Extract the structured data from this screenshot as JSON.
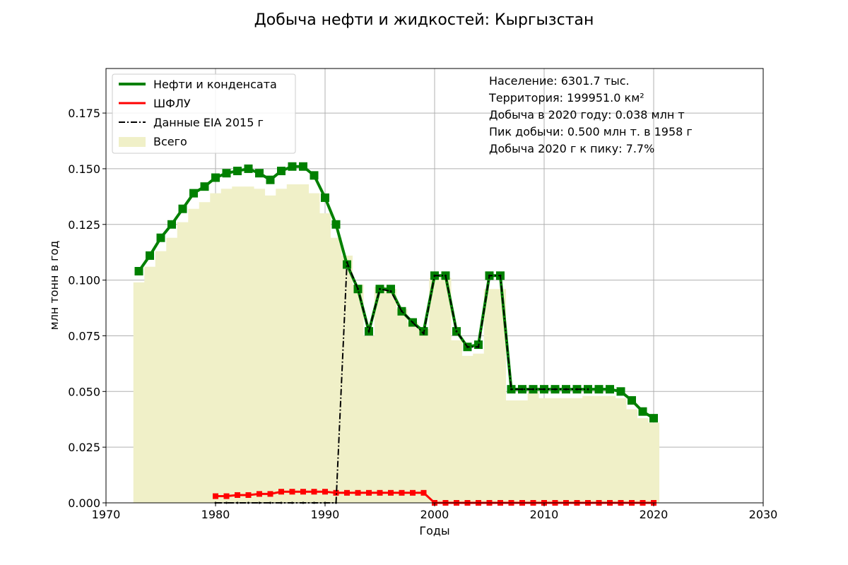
{
  "chart_data": {
    "type": "line",
    "title": "Добыча нефти и жидкостей: Кыргызстан",
    "xlabel": "Годы",
    "ylabel": "млн тонн в год",
    "xlim": [
      1970,
      2030
    ],
    "ylim": [
      0,
      0.195
    ],
    "x_ticks": [
      1970,
      1980,
      1990,
      2000,
      2010,
      2020,
      2030
    ],
    "y_ticks": [
      0,
      0.025,
      0.05,
      0.075,
      0.1,
      0.125,
      0.15,
      0.175
    ],
    "x_tick_labels": [
      "1970",
      "1980",
      "1990",
      "2000",
      "2010",
      "2020",
      "2030"
    ],
    "y_tick_labels": [
      "0.000",
      "0.025",
      "0.050",
      "0.075",
      "0.100",
      "0.125",
      "0.150",
      "0.175"
    ],
    "grid": true,
    "legend_position": "top-left",
    "legend": [
      "Нефти и конденсата",
      "ШФЛУ",
      "Данные EIA 2015 г",
      "Всего"
    ],
    "annotations": [
      "Население: 6301.7 тыс.",
      "Территория: 199951.0 км²",
      "Добыча в 2020 году: 0.038 млн т",
      "Пик добычи: 0.500 млн т. в 1958 г",
      "Добыча 2020 г к пику: 7.7%"
    ],
    "series": [
      {
        "name": "Нефти и конденсата",
        "color": "#008000",
        "x": [
          1973,
          1974,
          1975,
          1976,
          1977,
          1978,
          1979,
          1980,
          1981,
          1982,
          1983,
          1984,
          1985,
          1986,
          1987,
          1988,
          1989,
          1990,
          1991,
          1992,
          1993,
          1994,
          1995,
          1996,
          1997,
          1998,
          1999,
          2000,
          2001,
          2002,
          2003,
          2004,
          2005,
          2006,
          2007,
          2008,
          2009,
          2010,
          2011,
          2012,
          2013,
          2014,
          2015,
          2016,
          2017,
          2018,
          2019,
          2020
        ],
        "values": [
          0.104,
          0.111,
          0.119,
          0.125,
          0.132,
          0.139,
          0.142,
          0.146,
          0.148,
          0.149,
          0.15,
          0.148,
          0.145,
          0.149,
          0.151,
          0.151,
          0.147,
          0.137,
          0.125,
          0.107,
          0.096,
          0.077,
          0.096,
          0.096,
          0.086,
          0.081,
          0.077,
          0.102,
          0.102,
          0.077,
          0.07,
          0.071,
          0.102,
          0.102,
          0.051,
          0.051,
          0.051,
          0.051,
          0.051,
          0.051,
          0.051,
          0.051,
          0.051,
          0.051,
          0.05,
          0.046,
          0.041,
          0.038
        ]
      },
      {
        "name": "ШФЛУ",
        "color": "#ff0000",
        "x": [
          1980,
          1981,
          1982,
          1983,
          1984,
          1985,
          1986,
          1987,
          1988,
          1989,
          1990,
          1991,
          1992,
          1993,
          1994,
          1995,
          1996,
          1997,
          1998,
          1999,
          2000,
          2001,
          2002,
          2003,
          2004,
          2005,
          2006,
          2007,
          2008,
          2009,
          2010,
          2011,
          2012,
          2013,
          2014,
          2015,
          2016,
          2017,
          2018,
          2019,
          2020
        ],
        "values": [
          0.003,
          0.003,
          0.0035,
          0.0035,
          0.004,
          0.004,
          0.005,
          0.005,
          0.005,
          0.005,
          0.005,
          0.0045,
          0.0045,
          0.0045,
          0.0045,
          0.0045,
          0.0045,
          0.0045,
          0.0045,
          0.0045,
          0,
          0,
          0,
          0,
          0,
          0,
          0,
          0,
          0,
          0,
          0,
          0,
          0,
          0,
          0,
          0,
          0,
          0,
          0,
          0,
          0
        ]
      },
      {
        "name": "Данные EIA 2015 г",
        "color": "#000000",
        "x": [
          1980,
          1981,
          1982,
          1983,
          1984,
          1985,
          1986,
          1987,
          1988,
          1989,
          1990,
          1991,
          1992,
          1993,
          1994,
          1995,
          1996,
          1997,
          1998,
          1999,
          2000,
          2001,
          2002,
          2003,
          2004,
          2005,
          2006,
          2007,
          2008,
          2009,
          2010,
          2011,
          2012,
          2013,
          2014
        ],
        "values": [
          0,
          0,
          0,
          0,
          0,
          0,
          0,
          0,
          0,
          0,
          0,
          0,
          0.108,
          0.096,
          0.077,
          0.096,
          0.095,
          0.086,
          0.081,
          0.076,
          0.102,
          0.102,
          0.077,
          0.07,
          0.07,
          0.102,
          0.102,
          0.051,
          0.051,
          0.051,
          0.051,
          0.051,
          0.051,
          0.051,
          0.051
        ]
      },
      {
        "name": "Всего",
        "color": "#f0f0c8",
        "x": [
          1973,
          1974,
          1975,
          1976,
          1977,
          1978,
          1979,
          1980,
          1981,
          1982,
          1983,
          1984,
          1985,
          1986,
          1987,
          1988,
          1989,
          1990,
          1991,
          1992,
          1993,
          1994,
          1995,
          1996,
          1997,
          1998,
          1999,
          2000,
          2001,
          2002,
          2003,
          2004,
          2005,
          2006,
          2007,
          2008,
          2009,
          2010,
          2011,
          2012,
          2013,
          2014,
          2015,
          2016,
          2017,
          2018,
          2019,
          2020
        ],
        "values": [
          0.099,
          0.106,
          0.113,
          0.119,
          0.126,
          0.132,
          0.135,
          0.139,
          0.141,
          0.142,
          0.142,
          0.141,
          0.138,
          0.141,
          0.143,
          0.143,
          0.139,
          0.13,
          0.119,
          0.111,
          0.098,
          0.075,
          0.097,
          0.096,
          0.087,
          0.081,
          0.078,
          0.101,
          0.101,
          0.073,
          0.066,
          0.067,
          0.096,
          0.096,
          0.046,
          0.046,
          0.05,
          0.047,
          0.047,
          0.047,
          0.047,
          0.048,
          0.048,
          0.048,
          0.047,
          0.042,
          0.038,
          0.036
        ]
      }
    ]
  }
}
